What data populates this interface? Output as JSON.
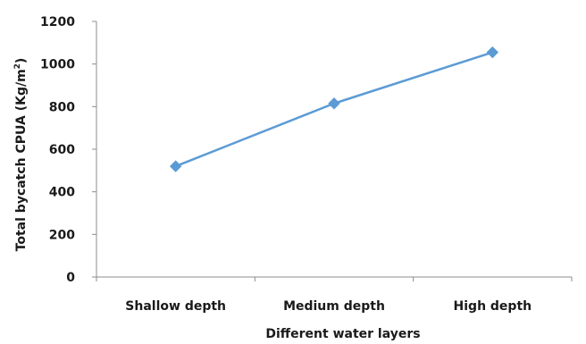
{
  "chart_data": {
    "type": "line",
    "categories": [
      "Shallow depth",
      "Medium depth",
      "High depth"
    ],
    "series": [
      {
        "values": [
          520,
          815,
          1055
        ],
        "color": "#5b9bd5",
        "marker": "diamond"
      }
    ],
    "xlabel": "Different water layers",
    "ylabel_main": "Total bycatch  CPUA (Kg/m",
    "ylabel_sup": "2",
    "ylabel_tail": ")",
    "ylim": [
      0,
      1200
    ],
    "yticks": [
      "0",
      "200",
      "400",
      "600",
      "800",
      "1000",
      "1200"
    ],
    "grid": false,
    "legend": "none"
  }
}
